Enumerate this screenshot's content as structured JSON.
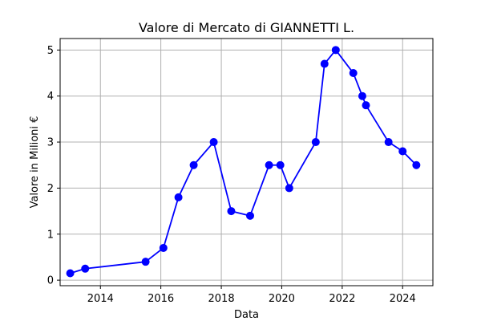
{
  "chart_data": {
    "type": "line",
    "title": "Valore di Mercato di GIANNETTI L.",
    "xlabel": "Data",
    "ylabel": "Valore in Milioni €",
    "grid": true,
    "x_axis": "date",
    "xlim": [
      "2012-09-01",
      "2025-01-01"
    ],
    "ylim": [
      -0.12,
      5.25
    ],
    "x_ticks": [
      {
        "date": "2014-01-01",
        "label": "2014"
      },
      {
        "date": "2016-01-01",
        "label": "2016"
      },
      {
        "date": "2018-01-01",
        "label": "2018"
      },
      {
        "date": "2020-01-01",
        "label": "2020"
      },
      {
        "date": "2022-01-01",
        "label": "2022"
      },
      {
        "date": "2024-01-01",
        "label": "2024"
      }
    ],
    "y_ticks": [
      0,
      1,
      2,
      3,
      4,
      5
    ],
    "colors": {
      "line": "#0000ff",
      "marker": "#0000ff",
      "grid": "#b0b0b0",
      "axes": "#000000"
    },
    "series": [
      {
        "points": [
          {
            "x": "2013-01-01",
            "y": 0.15
          },
          {
            "x": "2013-07-01",
            "y": 0.25
          },
          {
            "x": "2015-07-01",
            "y": 0.4
          },
          {
            "x": "2016-02-01",
            "y": 0.7
          },
          {
            "x": "2016-08-01",
            "y": 1.8
          },
          {
            "x": "2017-02-01",
            "y": 2.5
          },
          {
            "x": "2017-10-01",
            "y": 3.0
          },
          {
            "x": "2018-05-01",
            "y": 1.5
          },
          {
            "x": "2018-12-15",
            "y": 1.4
          },
          {
            "x": "2019-08-01",
            "y": 2.5
          },
          {
            "x": "2019-12-15",
            "y": 2.5
          },
          {
            "x": "2020-04-01",
            "y": 2.0
          },
          {
            "x": "2021-02-15",
            "y": 3.0
          },
          {
            "x": "2021-06-01",
            "y": 4.7
          },
          {
            "x": "2021-10-15",
            "y": 5.0
          },
          {
            "x": "2022-05-15",
            "y": 4.5
          },
          {
            "x": "2022-09-01",
            "y": 4.0
          },
          {
            "x": "2022-10-15",
            "y": 3.8
          },
          {
            "x": "2023-07-15",
            "y": 3.0
          },
          {
            "x": "2024-01-01",
            "y": 2.8
          },
          {
            "x": "2024-06-15",
            "y": 2.5
          }
        ]
      }
    ]
  }
}
